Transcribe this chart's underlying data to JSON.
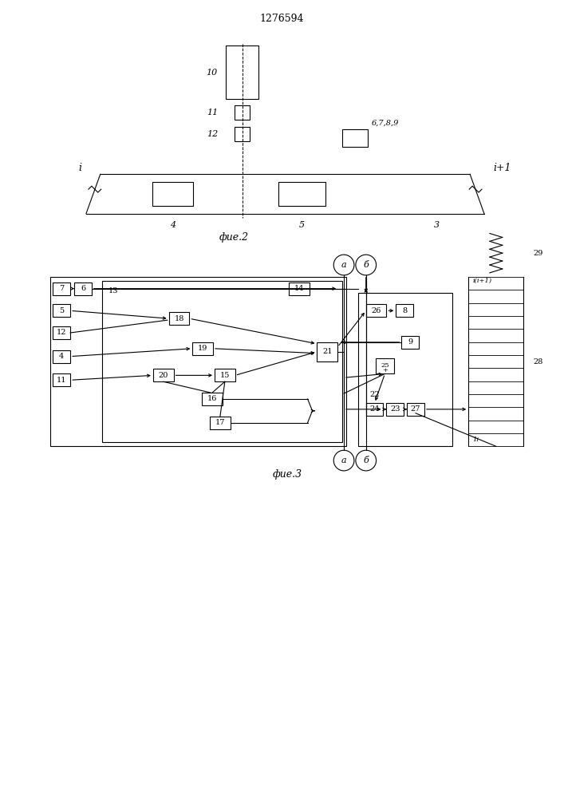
{
  "title": "1276594",
  "fig2_label": "фие.2",
  "fig3_label": "фие.3",
  "bg_color": "#ffffff",
  "line_color": "#000000"
}
